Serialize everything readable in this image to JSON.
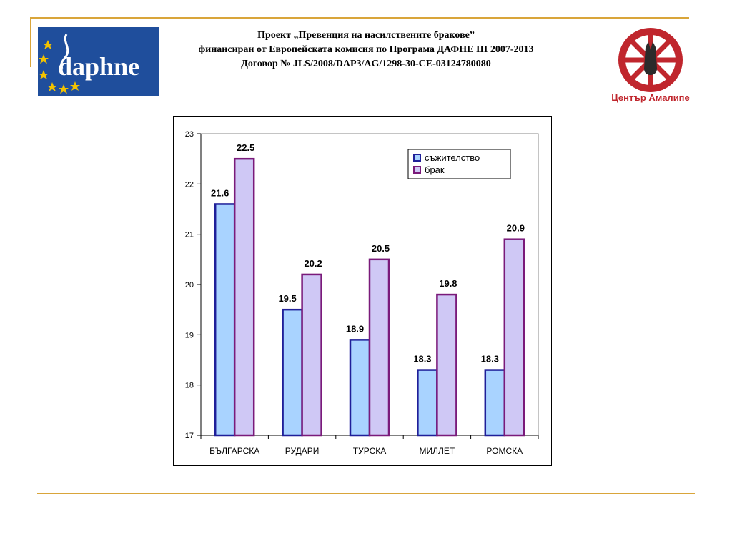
{
  "header": {
    "line1": "Проект „Превенция на насилствените бракове”",
    "line2": "финансиран от Европейската комисия по Програма ДАФНЕ III 2007-2013",
    "line3": "Договор № JLS/2008/DAP3/AG/1298-30-CE-03124780080"
  },
  "logos": {
    "daphne_text": "daphne",
    "amalipe_text": "Център Амалипе"
  },
  "colors": {
    "accent_rule": "#d9a53a",
    "daphne_bg": "#1f4e9c",
    "amalipe_red": "#c0262d",
    "series1_fill": "#a9d3ff",
    "series1_stroke": "#1f1f99",
    "series2_fill": "#cfc8f5",
    "series2_stroke": "#7a1a7a"
  },
  "chart_data": {
    "type": "bar",
    "categories": [
      "БЪЛГАРСКА",
      "РУДАРИ",
      "ТУРСКА",
      "МИЛЛЕТ",
      "РОМСКА"
    ],
    "series": [
      {
        "name": "съжителство",
        "values": [
          21.6,
          19.5,
          18.9,
          18.3,
          18.3
        ]
      },
      {
        "name": "брак",
        "values": [
          22.5,
          20.2,
          20.5,
          19.8,
          20.9
        ]
      }
    ],
    "ylim": [
      17,
      23
    ],
    "yticks": [
      17,
      18,
      19,
      20,
      21,
      22,
      23
    ],
    "legend_position": "top-right",
    "grid": false
  }
}
